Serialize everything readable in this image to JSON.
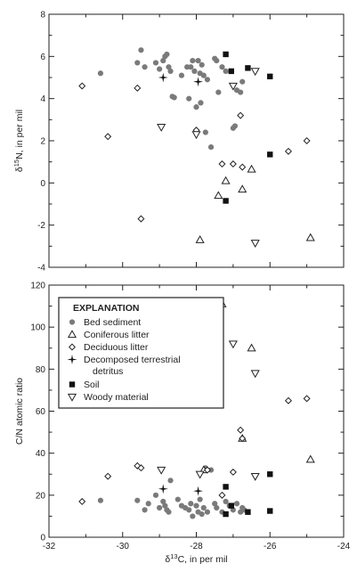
{
  "chart_data": [
    {
      "type": "scatter",
      "title": "",
      "xlabel": "",
      "ylabel": "δ15N, in per mil",
      "xlim": [
        -32,
        -24
      ],
      "ylim": [
        -4,
        8
      ],
      "xticks": [],
      "yticks": [
        "8",
        "6",
        "4",
        "2",
        "0",
        "-2",
        "-4"
      ],
      "series": [
        {
          "name": "Bed sediment",
          "points": [
            [
              -30.6,
              5.2
            ],
            [
              -29.6,
              5.7
            ],
            [
              -29.5,
              6.3
            ],
            [
              -29.4,
              5.5
            ],
            [
              -29.1,
              5.7
            ],
            [
              -29.0,
              5.4
            ],
            [
              -28.9,
              5.8
            ],
            [
              -28.85,
              6.0
            ],
            [
              -28.8,
              6.1
            ],
            [
              -28.75,
              5.5
            ],
            [
              -28.7,
              5.3
            ],
            [
              -28.65,
              4.1
            ],
            [
              -28.6,
              4.05
            ],
            [
              -28.4,
              5.1
            ],
            [
              -28.25,
              5.5
            ],
            [
              -28.2,
              4.0
            ],
            [
              -28.15,
              5.5
            ],
            [
              -28.1,
              5.8
            ],
            [
              -28.05,
              5.3
            ],
            [
              -28.0,
              3.6
            ],
            [
              -27.95,
              5.8
            ],
            [
              -27.9,
              5.2
            ],
            [
              -27.88,
              3.8
            ],
            [
              -27.85,
              5.6
            ],
            [
              -27.8,
              5.1
            ],
            [
              -27.75,
              2.4
            ],
            [
              -27.7,
              4.9
            ],
            [
              -27.6,
              1.7
            ],
            [
              -27.5,
              5.9
            ],
            [
              -27.45,
              5.8
            ],
            [
              -27.4,
              4.3
            ],
            [
              -27.3,
              5.5
            ],
            [
              -27.2,
              5.3
            ],
            [
              -27.0,
              2.6
            ],
            [
              -26.95,
              2.7
            ],
            [
              -26.9,
              4.4
            ],
            [
              -26.8,
              4.3
            ],
            [
              -26.75,
              4.8
            ]
          ]
        },
        {
          "name": "Coniferous litter",
          "points": [
            [
              -27.4,
              -0.6
            ],
            [
              -27.2,
              0.1
            ],
            [
              -26.75,
              -0.3
            ],
            [
              -26.5,
              0.65
            ],
            [
              -27.9,
              -2.7
            ],
            [
              -24.9,
              -2.6
            ]
          ]
        },
        {
          "name": "Deciduous litter",
          "points": [
            [
              -31.1,
              4.6
            ],
            [
              -30.4,
              2.2
            ],
            [
              -29.6,
              4.5
            ],
            [
              -29.5,
              -1.7
            ],
            [
              -28.0,
              2.5
            ],
            [
              -27.3,
              0.9
            ],
            [
              -27.0,
              0.9
            ],
            [
              -26.8,
              3.2
            ],
            [
              -26.75,
              0.75
            ],
            [
              -25.5,
              1.5
            ],
            [
              -25.0,
              2.0
            ]
          ]
        },
        {
          "name": "Decomposed terrestrial detritus",
          "points": [
            [
              -28.9,
              5.0
            ],
            [
              -27.95,
              4.8
            ]
          ]
        },
        {
          "name": "Soil",
          "points": [
            [
              -27.2,
              6.1
            ],
            [
              -27.05,
              5.3
            ],
            [
              -26.6,
              5.45
            ],
            [
              -27.2,
              -0.85
            ],
            [
              -26.0,
              5.05
            ],
            [
              -26.0,
              1.35
            ]
          ]
        },
        {
          "name": "Woody material",
          "points": [
            [
              -28.95,
              2.65
            ],
            [
              -28.0,
              2.3
            ],
            [
              -27.0,
              4.6
            ],
            [
              -26.4,
              5.3
            ],
            [
              -26.4,
              -2.85
            ]
          ]
        }
      ]
    },
    {
      "type": "scatter",
      "title": "",
      "xlabel": "δ13C, in per mil",
      "ylabel": "C/N atomic ratio",
      "xlim": [
        -32,
        -24
      ],
      "ylim": [
        0,
        120
      ],
      "xticks": [
        "-32",
        "-30",
        "-28",
        "-26",
        "-24"
      ],
      "yticks": [
        "120",
        "100",
        "80",
        "60",
        "40",
        "20",
        "0"
      ],
      "series": [
        {
          "name": "Bed sediment",
          "points": [
            [
              -30.6,
              17.5
            ],
            [
              -29.6,
              17.5
            ],
            [
              -29.4,
              13
            ],
            [
              -29.3,
              16
            ],
            [
              -29.1,
              20
            ],
            [
              -29.0,
              14
            ],
            [
              -28.9,
              17
            ],
            [
              -28.85,
              15
            ],
            [
              -28.8,
              13
            ],
            [
              -28.75,
              12
            ],
            [
              -28.7,
              27
            ],
            [
              -28.5,
              18
            ],
            [
              -28.4,
              15
            ],
            [
              -28.3,
              14
            ],
            [
              -28.2,
              13
            ],
            [
              -28.15,
              16
            ],
            [
              -28.1,
              10
            ],
            [
              -28.0,
              15
            ],
            [
              -27.95,
              12
            ],
            [
              -27.9,
              18
            ],
            [
              -27.85,
              11
            ],
            [
              -27.8,
              14
            ],
            [
              -27.75,
              33
            ],
            [
              -27.7,
              12
            ],
            [
              -27.6,
              32
            ],
            [
              -27.5,
              16
            ],
            [
              -27.45,
              14
            ],
            [
              -27.3,
              12
            ],
            [
              -27.2,
              17
            ],
            [
              -27.1,
              15
            ],
            [
              -27.0,
              13
            ],
            [
              -26.9,
              16
            ],
            [
              -26.8,
              12
            ],
            [
              -26.75,
              14
            ],
            [
              -26.7,
              13
            ]
          ]
        },
        {
          "name": "Coniferous litter",
          "points": [
            [
              -27.3,
              111
            ],
            [
              -27.45,
              67
            ],
            [
              -26.5,
              90
            ],
            [
              -26.75,
              47
            ],
            [
              -27.8,
              32
            ],
            [
              -24.9,
              37
            ]
          ]
        },
        {
          "name": "Deciduous litter",
          "points": [
            [
              -31.1,
              17
            ],
            [
              -30.4,
              29
            ],
            [
              -29.6,
              34
            ],
            [
              -29.5,
              33
            ],
            [
              -27.7,
              32
            ],
            [
              -26.8,
              51
            ],
            [
              -26.75,
              47
            ],
            [
              -27.3,
              20
            ],
            [
              -27.0,
              31
            ],
            [
              -25.5,
              65
            ],
            [
              -25.0,
              66
            ]
          ]
        },
        {
          "name": "Decomposed terrestrial detritus",
          "points": [
            [
              -28.9,
              23
            ],
            [
              -27.95,
              22
            ]
          ]
        },
        {
          "name": "Soil",
          "points": [
            [
              -27.2,
              24
            ],
            [
              -27.2,
              11
            ],
            [
              -27.05,
              15
            ],
            [
              -26.6,
              12
            ],
            [
              -26.0,
              30
            ],
            [
              -26.0,
              12.5
            ]
          ]
        },
        {
          "name": "Woody material",
          "points": [
            [
              -28.95,
              32
            ],
            [
              -27.9,
              30
            ],
            [
              -27.0,
              92
            ],
            [
              -26.4,
              78
            ],
            [
              -26.4,
              29
            ]
          ]
        }
      ],
      "legend": {
        "title": "EXPLANATION",
        "placement": "top-left",
        "items": [
          "Bed sediment",
          "Coniferous litter",
          "Deciduous litter",
          "Decomposed terrestrial detritus",
          "Soil",
          "Woody material"
        ]
      }
    }
  ]
}
